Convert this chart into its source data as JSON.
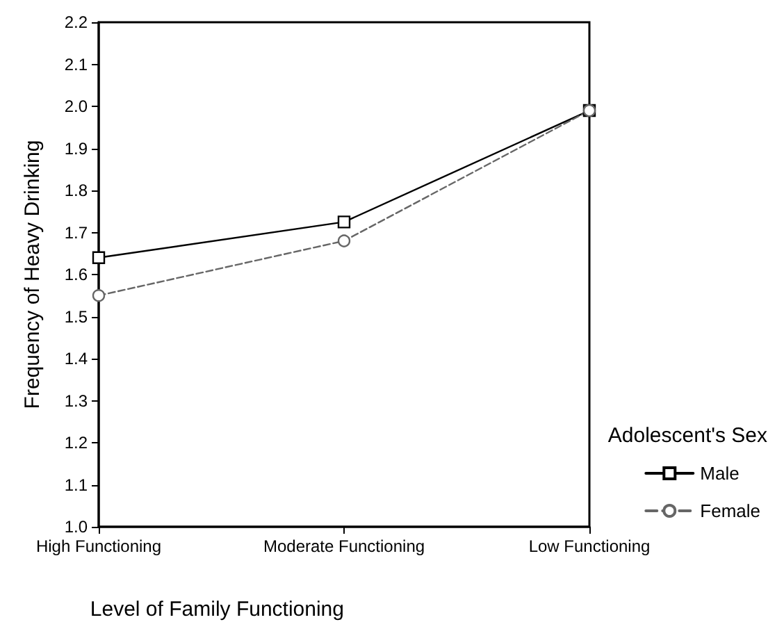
{
  "chart_data": {
    "type": "line",
    "xlabel": "Level of Family Functioning",
    "ylabel": "Frequency of Heavy Drinking",
    "legend_title": "Adolescent's Sex",
    "categories": [
      "High Functioning",
      "Moderate Functioning",
      "Low Functioning"
    ],
    "series": [
      {
        "name": "Male",
        "color": "#000000",
        "values": [
          1.64,
          1.725,
          1.99
        ],
        "line_style": "solid",
        "marker": "square"
      },
      {
        "name": "Female",
        "color": "#666666",
        "values": [
          1.55,
          1.68,
          1.99
        ],
        "line_style": "dashed",
        "marker": "circle"
      }
    ],
    "ylim": [
      1.0,
      2.2
    ],
    "yticks": [
      {
        "value": 1,
        "label": "1.0"
      },
      1.1,
      1.2,
      1.3,
      1.4,
      1.5,
      1.6,
      1.7,
      1.8,
      1.9,
      {
        "value": 2,
        "label": "2.0"
      },
      2.1,
      2.2
    ],
    "grid": false,
    "legend": "bottom right"
  }
}
